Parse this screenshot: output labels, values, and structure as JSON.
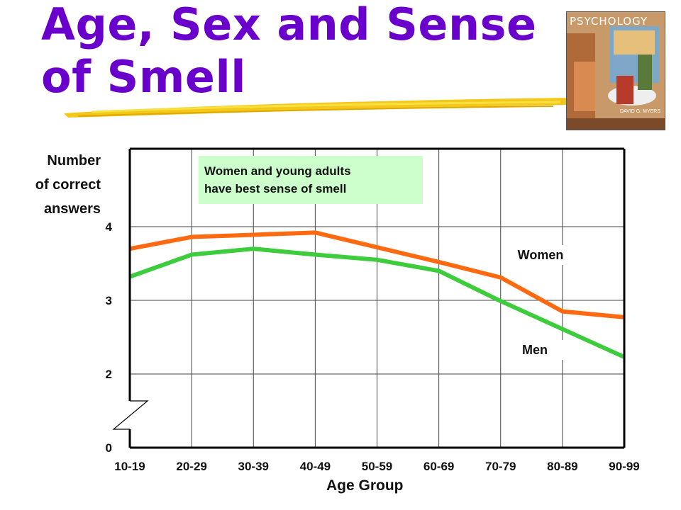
{
  "slide": {
    "title_line1": "Age, Sex and Sense",
    "title_line2": "of Smell",
    "book": {
      "title": "PSYCHOLOGY",
      "author": "DAVID G. MYERS"
    },
    "note_line1": "Women and young adults",
    "note_line2": "have best sense of smell",
    "colors": {
      "title": "#6a00cc",
      "women": "#ff6a10",
      "men": "#3ccc3c",
      "note_bg": "#ccffcc"
    }
  },
  "chart_data": {
    "type": "line",
    "categories": [
      "10-19",
      "20-29",
      "30-39",
      "40-49",
      "50-59",
      "60-69",
      "70-79",
      "80-89",
      "90-99"
    ],
    "series": [
      {
        "name": "Women",
        "values": [
          3.7,
          3.86,
          3.89,
          3.92,
          3.72,
          3.52,
          3.31,
          2.85,
          2.77
        ]
      },
      {
        "name": "Men",
        "values": [
          3.32,
          3.62,
          3.7,
          3.62,
          3.55,
          3.4,
          2.99,
          2.61,
          2.23
        ]
      }
    ],
    "xlabel": "Age Group",
    "ylabel_lines": [
      "Number",
      "of correct",
      "answers"
    ],
    "yticks": [
      0,
      2,
      3,
      4
    ],
    "ylim": [
      0,
      4.4
    ],
    "axis_break": "between 0 and 2",
    "grid": true
  }
}
